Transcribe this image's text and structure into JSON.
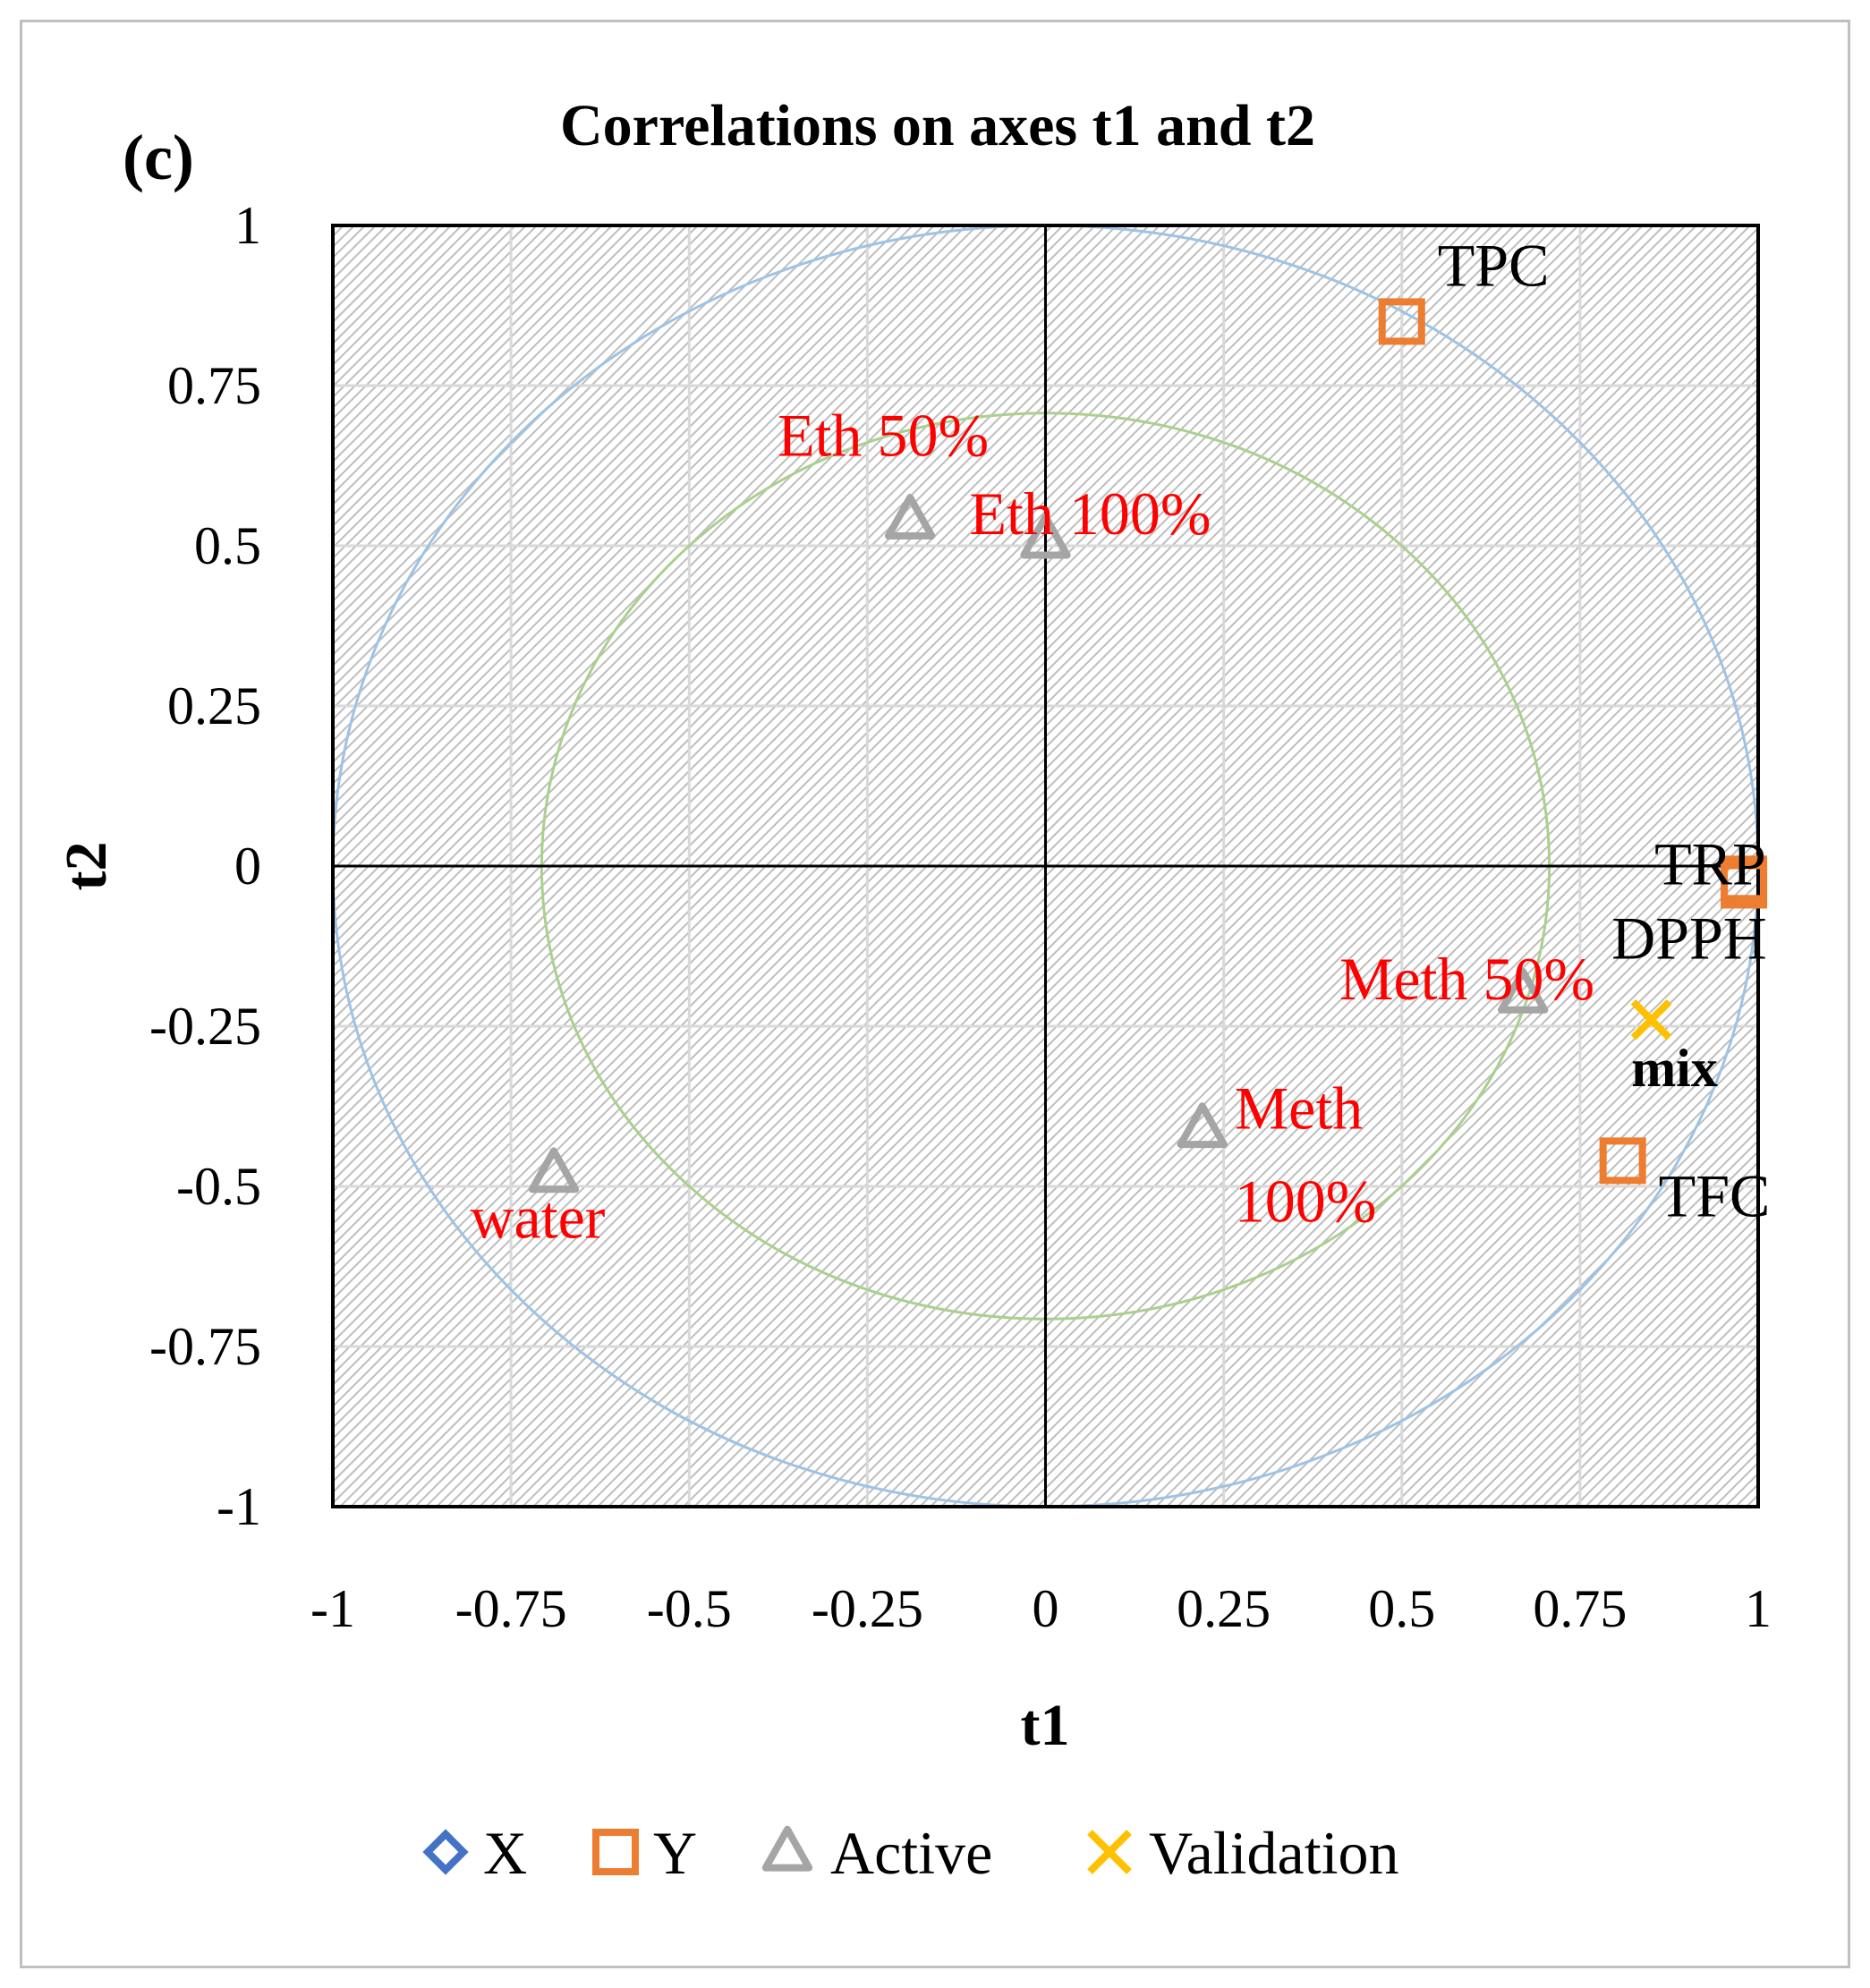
{
  "panel_label": "(c)",
  "chart_data": {
    "type": "scatter",
    "title": "Correlations on axes t1 and t2",
    "xlabel": "t1",
    "ylabel": "t2",
    "xlim": [
      -1,
      1
    ],
    "ylim": [
      -1,
      1
    ],
    "xticks": [
      -1,
      -0.75,
      -0.5,
      -0.25,
      0,
      0.25,
      0.5,
      0.75,
      1
    ],
    "yticks": [
      -1,
      -0.75,
      -0.5,
      -0.25,
      0,
      0.25,
      0.5,
      0.75,
      1
    ],
    "xtick_labels": [
      "-1",
      "-0.75",
      "-0.5",
      "-0.25",
      "0",
      "0.25",
      "0.5",
      "0.75",
      "1"
    ],
    "ytick_labels": [
      "-1",
      "-0.75",
      "-0.5",
      "-0.25",
      "0",
      "0.25",
      "0.5",
      "0.75",
      "1"
    ],
    "grid": true,
    "circles": [
      {
        "radius": 1,
        "color": "#9dc3e6"
      },
      {
        "radius": 0.707,
        "color": "#a9d18e"
      }
    ],
    "legend_position": "bottom",
    "series": [
      {
        "name": "X",
        "marker": "diamond",
        "color": "#4472c4",
        "points": []
      },
      {
        "name": "Y",
        "marker": "square",
        "color": "#ed7d31",
        "label_color": "#000000",
        "points": [
          {
            "label": "TPC",
            "x": 0.5,
            "y": 0.85
          },
          {
            "label": "TRP",
            "x": 0.98,
            "y": -0.02
          },
          {
            "label": "DPPH",
            "x": 0.98,
            "y": -0.03
          },
          {
            "label": "TFC",
            "x": 0.81,
            "y": -0.46
          }
        ]
      },
      {
        "name": "Active",
        "marker": "triangle",
        "color": "#a5a5a5",
        "label_color": "#ff0000",
        "points": [
          {
            "label": "Eth 50%",
            "x": -0.19,
            "y": 0.54
          },
          {
            "label": "Eth 100%",
            "x": 0.0,
            "y": 0.51
          },
          {
            "label": "Meth 50%",
            "x": 0.67,
            "y": -0.2
          },
          {
            "label": "Meth 100%",
            "x": 0.22,
            "y": -0.41
          },
          {
            "label": "water",
            "x": -0.69,
            "y": -0.48
          }
        ]
      },
      {
        "name": "Validation",
        "marker": "x",
        "color": "#ffc000",
        "label_color": "#000000",
        "points": [
          {
            "label": "mix",
            "x": 0.85,
            "y": -0.24
          }
        ]
      }
    ]
  }
}
